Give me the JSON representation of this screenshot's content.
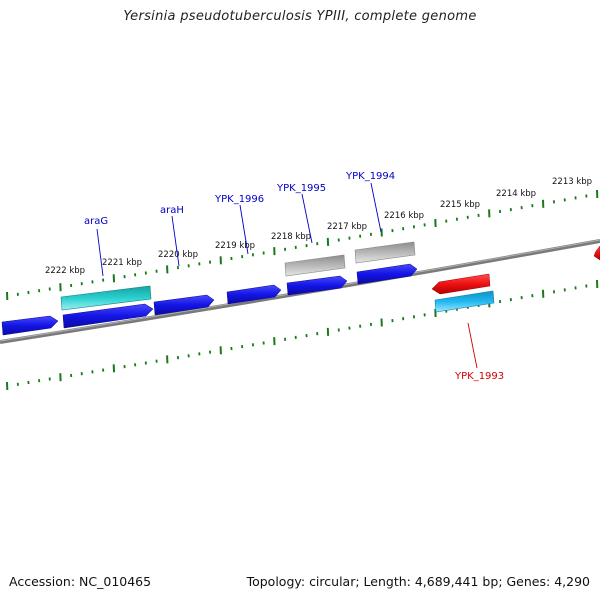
{
  "title": "Yersinia pseudotuberculosis YPIII, complete genome",
  "footer": {
    "accession_label": "Accession:",
    "accession": "NC_010465",
    "topology_label": "Topology:",
    "topology": "circular",
    "length_label": "Length:",
    "length": "4,689,441 bp",
    "genes_label": "Genes:",
    "genes": "4,290"
  },
  "colors": {
    "backbone": "#808080",
    "tick": "#1a7a1a",
    "gene_forward": "#1414e6",
    "gene_reverse": "#ee1010",
    "gene_cds_forward": "#22c4c4",
    "gene_cds_reverse": "#21b8ee",
    "gene_other": "#b4b4b4",
    "label_forward": "#0000c8",
    "label_reverse": "#d40000"
  },
  "scale_labels": [
    "2213 kbp",
    "2214 kbp",
    "2215 kbp",
    "2216 kbp",
    "2217 kbp",
    "2218 kbp",
    "2219 kbp",
    "2220 kbp",
    "2221 kbp",
    "2222 kbp"
  ],
  "gene_labels": [
    {
      "name": "araG",
      "strand": "forward"
    },
    {
      "name": "araH",
      "strand": "forward"
    },
    {
      "name": "YPK_1996",
      "strand": "forward"
    },
    {
      "name": "YPK_1995",
      "strand": "forward"
    },
    {
      "name": "YPK_1994",
      "strand": "forward"
    },
    {
      "name": "YPK_1993",
      "strand": "reverse"
    }
  ]
}
